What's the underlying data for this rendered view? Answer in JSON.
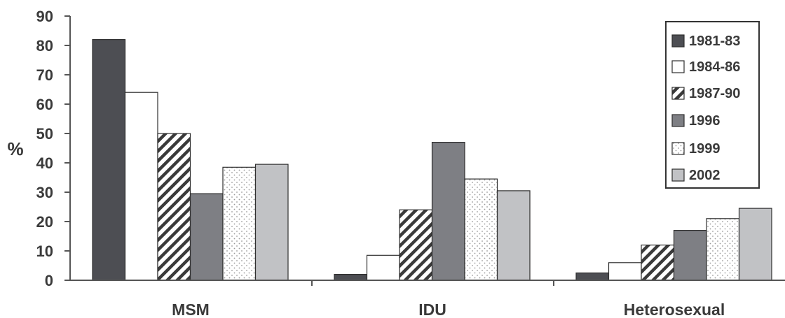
{
  "chart_data": {
    "type": "bar",
    "title": "",
    "xlabel": "",
    "ylabel": "%",
    "ylim": [
      0,
      90
    ],
    "yticks": [
      "0",
      "10",
      "20",
      "30",
      "40",
      "50",
      "60",
      "70",
      "80",
      "90"
    ],
    "categories": [
      "MSM",
      "IDU",
      "Heterosexual"
    ],
    "series": [
      {
        "name": "1981-83",
        "values": [
          82,
          2,
          2.5
        ]
      },
      {
        "name": "1984-86",
        "values": [
          64,
          8.5,
          6
        ]
      },
      {
        "name": "1987-90",
        "values": [
          50,
          24,
          12
        ]
      },
      {
        "name": "1996",
        "values": [
          29.5,
          47,
          17
        ]
      },
      {
        "name": "1999",
        "values": [
          38.5,
          34.5,
          21
        ]
      },
      {
        "name": "2002",
        "values": [
          39.5,
          30.5,
          24.5
        ]
      }
    ],
    "legend_position": "top-right",
    "grid": false,
    "series_styles": [
      {
        "fill": "#4d4e53",
        "pattern": "solid"
      },
      {
        "fill": "#ffffff",
        "pattern": "solid"
      },
      {
        "fill": "#ffffff",
        "pattern": "diagonal-stripes"
      },
      {
        "fill": "#7e7f84",
        "pattern": "solid"
      },
      {
        "fill": "#ffffff",
        "pattern": "dots"
      },
      {
        "fill": "#c1c2c5",
        "pattern": "solid"
      }
    ]
  }
}
